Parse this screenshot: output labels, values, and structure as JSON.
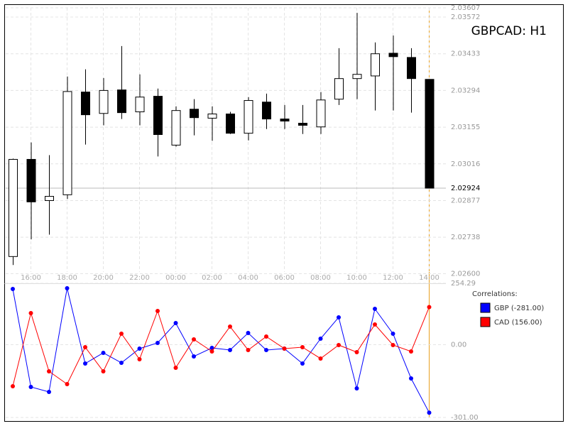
{
  "chart_data": [
    {
      "type": "candlestick",
      "title": "GBPCAD: H1",
      "categories": [
        null,
        "16:00",
        null,
        "18:00",
        null,
        "20:00",
        null,
        "22:00",
        null,
        "00:00",
        null,
        "02:00",
        null,
        "04:00",
        null,
        "06:00",
        null,
        "08:00",
        null,
        "10:00",
        null,
        "12:00",
        null,
        "14:00"
      ],
      "open": [
        2.02665,
        2.03033,
        2.02877,
        2.02899,
        2.03288,
        2.03207,
        2.03296,
        2.03213,
        2.03272,
        2.03087,
        2.03223,
        2.03189,
        2.03205,
        2.03132,
        2.0325,
        2.03186,
        2.0317,
        2.03156,
        2.03261,
        2.03339,
        2.03349,
        2.03435,
        2.03419,
        2.03336
      ],
      "high": [
        2.03036,
        2.03097,
        2.03049,
        2.03347,
        2.03374,
        2.03341,
        2.03462,
        2.03355,
        2.03301,
        2.03234,
        2.03261,
        2.03234,
        2.03213,
        2.03269,
        2.03282,
        2.03239,
        2.03239,
        2.03288,
        2.03454,
        2.03588,
        2.03476,
        2.03502,
        2.03454,
        2.03336
      ],
      "low": [
        2.02633,
        2.0273,
        2.02748,
        2.02883,
        2.03089,
        2.03162,
        2.03186,
        2.03162,
        2.03044,
        2.03081,
        2.03124,
        2.03103,
        2.03129,
        2.03105,
        2.03148,
        2.03148,
        2.03129,
        2.03129,
        2.03239,
        2.03261,
        2.03218,
        2.03218,
        2.0321,
        2.02924
      ],
      "close": [
        2.03033,
        2.02872,
        2.02893,
        2.0329,
        2.03202,
        2.03294,
        2.0321,
        2.03269,
        2.03127,
        2.03218,
        2.03191,
        2.03205,
        2.03132,
        2.03256,
        2.03186,
        2.03178,
        2.03162,
        2.03258,
        2.03339,
        2.03355,
        2.03433,
        2.03422,
        2.03339,
        2.02924
      ],
      "up_color": "#ffffff",
      "down_color": "#000000",
      "ylim": [
        2.026,
        2.03607
      ],
      "yticks": [
        2.03607,
        2.03572,
        2.03433,
        2.03294,
        2.03155,
        2.03016,
        2.02877,
        2.02738,
        {
          "value": 2.026,
          "label": "2.02600"
        }
      ],
      "last_price": 2.02924,
      "grid": true
    },
    {
      "type": "line",
      "legend_title": "Correlations:",
      "series": [
        {
          "name": "GBP (-281.00)",
          "color": "#0000ff",
          "values": [
            230.8,
            -174.6,
            -195.2,
            233.7,
            -77.7,
            -33.6,
            -74.8,
            -16.0,
            7.5,
            89.8,
            -48.3,
            -13.1,
            -21.9,
            48.6,
            -21.9,
            -16.0,
            -77.7,
            25.1,
            113.3,
            -180.5,
            148.5,
            45.7,
            -139.4,
            -281
          ]
        },
        {
          "name": "CAD (156.00)",
          "color": "#ff0000",
          "values": [
            -171.7,
            130.9,
            -110.0,
            -162.9,
            -10.1,
            -110.0,
            45.7,
            -60.1,
            139.7,
            -95.3,
            22.2,
            -27.7,
            75.1,
            -21.9,
            33.9,
            -16.0,
            -10.1,
            -57.1,
            -1.3,
            -30.7,
            83.9,
            -1.3,
            -27.7,
            156
          ]
        }
      ],
      "ylim": [
        -301,
        254.29
      ],
      "yticks": [
        254.29,
        {
          "value": 0,
          "label": "0.00"
        },
        {
          "value": -301,
          "label": "-301.00"
        }
      ]
    }
  ]
}
